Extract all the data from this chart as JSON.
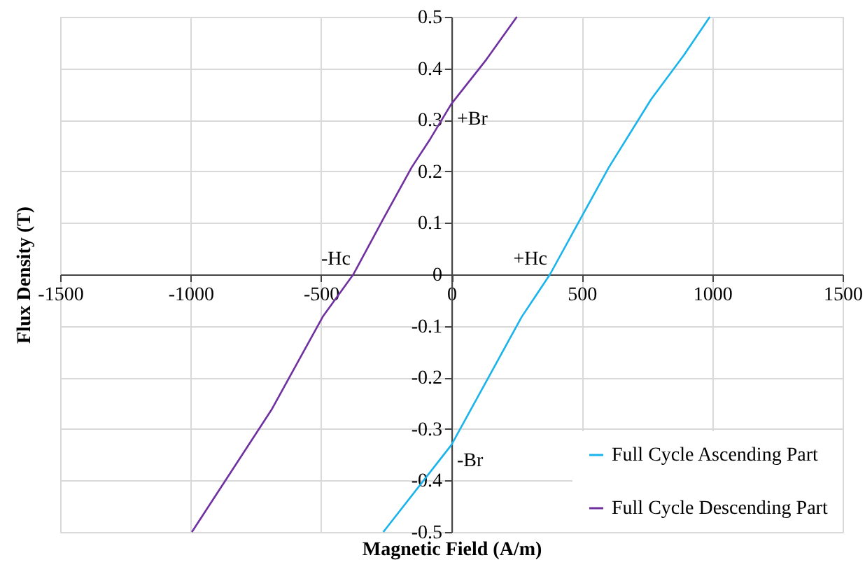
{
  "chart_data": {
    "type": "line",
    "xlabel": "Magnetic Field (A/m)",
    "ylabel": "Flux Density (T)",
    "xlim": [
      -1500,
      1500
    ],
    "xticks": [
      -1500,
      -1000,
      -500,
      0,
      500,
      1000,
      1500
    ],
    "ylim": [
      -0.5,
      0.5
    ],
    "yticks": [
      -0.5,
      -0.4,
      -0.3,
      -0.2,
      -0.1,
      0,
      0.1,
      0.2,
      0.3,
      0.4,
      0.5
    ],
    "grid": true,
    "legend": "bottom right",
    "marker": "none",
    "line_style": "solid",
    "series": [
      {
        "name": "Full Cycle Ascending Part",
        "color": "#1ab4ec",
        "x": [
          -261,
          0,
          153,
          270,
          378,
          496,
          604,
          766,
          892,
          991
        ],
        "values": [
          -0.5,
          -0.331,
          -0.19,
          -0.082,
          0,
          0.109,
          0.208,
          0.34,
          0.426,
          0.5
        ]
      },
      {
        "name": "Full Cycle Descending Part",
        "color": "#7030a0",
        "x": [
          -995,
          -690,
          -493,
          -376,
          -260,
          -152,
          -81,
          0,
          134,
          251
        ],
        "values": [
          -0.5,
          -0.263,
          -0.082,
          0,
          0.109,
          0.208,
          0.263,
          0.331,
          0.417,
          0.5
        ]
      }
    ],
    "annotations": [
      {
        "text": "+Br",
        "x": 0,
        "y": 0.331
      },
      {
        "text": "-Br",
        "x": 0,
        "y": -0.331
      },
      {
        "text": "+Hc",
        "x": 378,
        "y": 0
      },
      {
        "text": "-Hc",
        "x": -376,
        "y": 0
      }
    ]
  }
}
